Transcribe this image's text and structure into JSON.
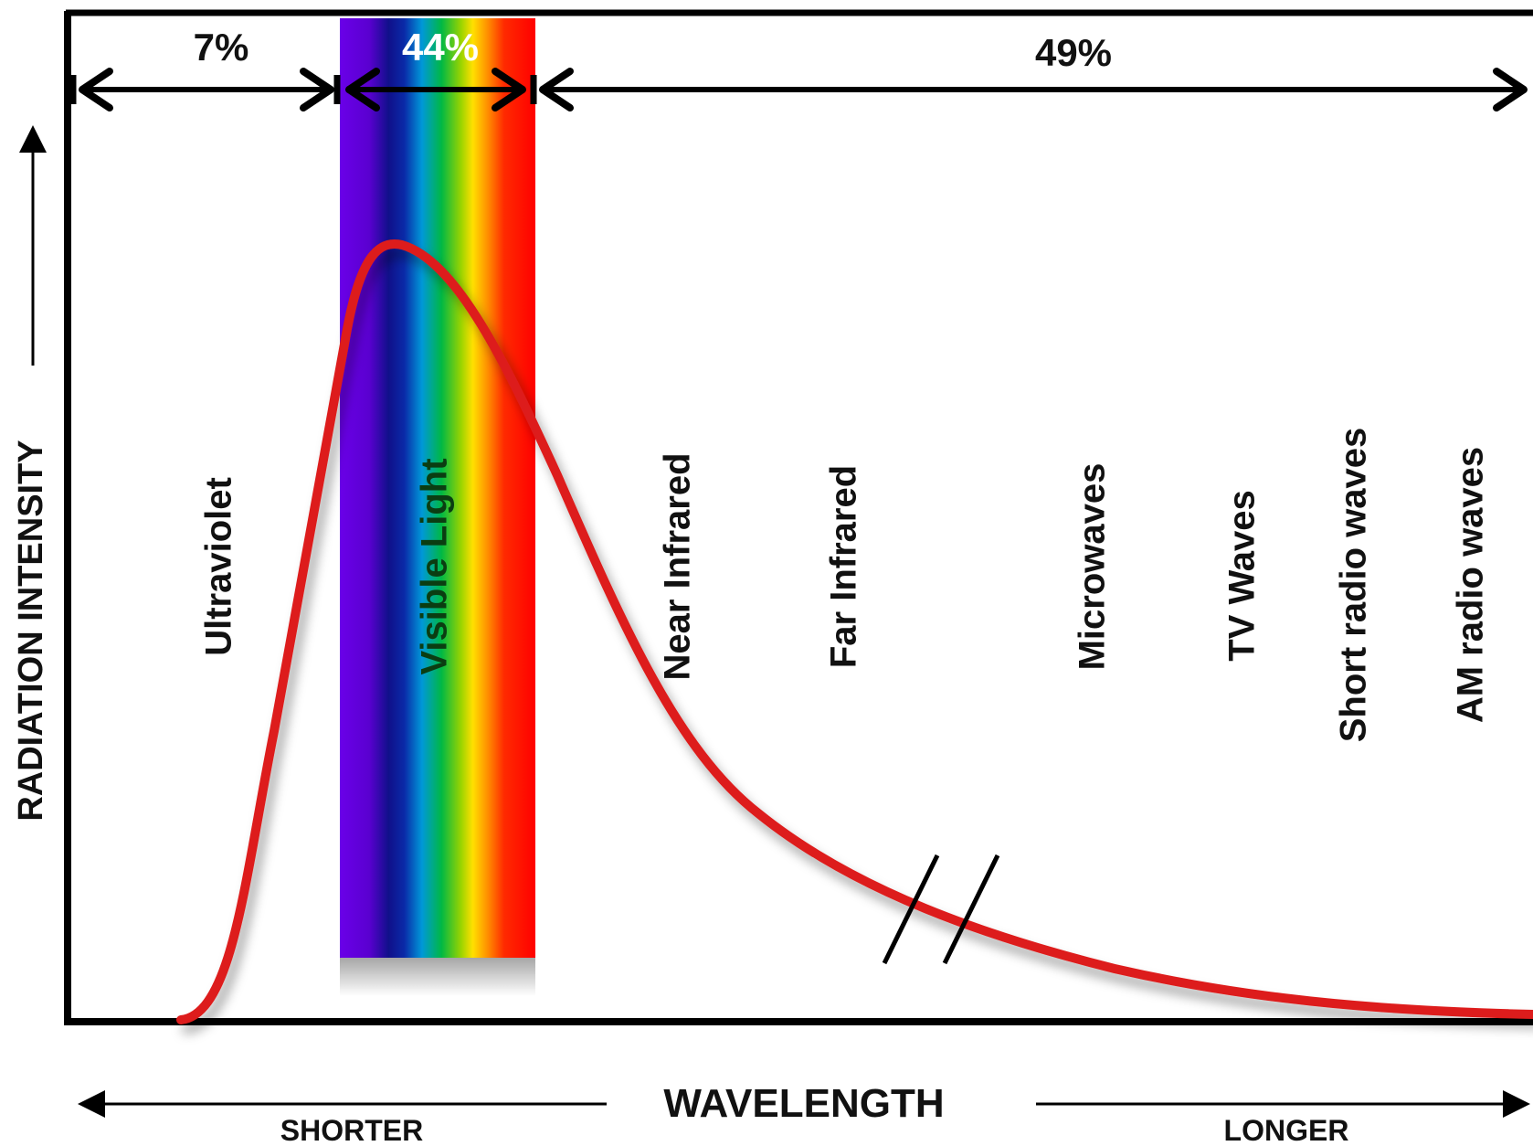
{
  "diagram": {
    "y_axis_label": "RADIATION INTENSITY",
    "x_axis_label": "WAVELENGTH",
    "direction_shorter": "SHORTER",
    "direction_longer": "LONGER",
    "percent_uv": "7%",
    "percent_visible": "44%",
    "percent_ir_and_beyond": "49%",
    "bands": [
      {
        "label": "Ultraviolet"
      },
      {
        "label": "Visible Light"
      },
      {
        "label": "Near Infrared"
      },
      {
        "label": "Far Infrared"
      },
      {
        "label": "Microwaves"
      },
      {
        "label": "TV Waves"
      },
      {
        "label": "Short radio waves"
      },
      {
        "label": "AM radio waves"
      }
    ],
    "colors": {
      "frame": "#000000",
      "curve": "#dd1c1a",
      "spectrum": [
        "#7a00e6",
        "#0a0a90",
        "#0090d8",
        "#00b03a",
        "#ffd400",
        "#ff7a00",
        "#ff0000"
      ]
    }
  }
}
